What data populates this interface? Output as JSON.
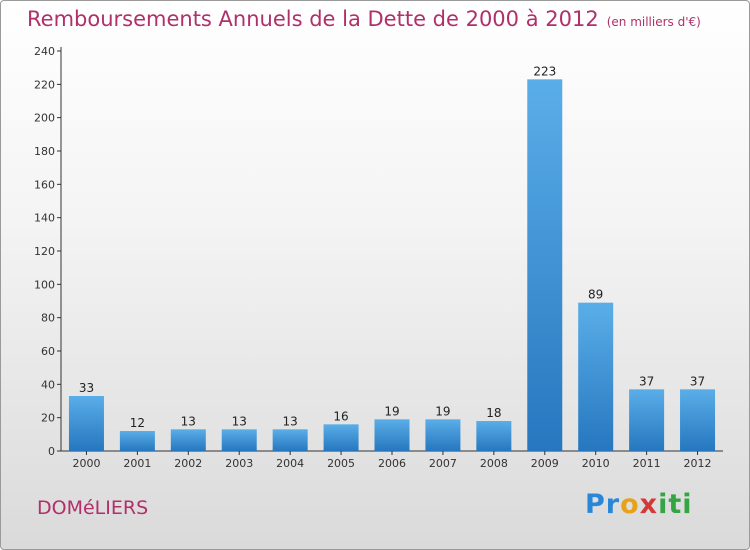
{
  "header": {
    "title": "Remboursements Annuels de la Dette de 2000 à 2012",
    "unit": "(en milliers d'€)"
  },
  "footer": {
    "commune": "DOMéLIERS",
    "logo": [
      "Pr",
      "o",
      "x",
      "iti"
    ]
  },
  "colors": {
    "bar_light": "#5aaee8",
    "bar_dark": "#2677bf",
    "title": "#b0306a",
    "axis": "#333333"
  },
  "chart_data": {
    "type": "bar",
    "title": "Remboursements Annuels de la Dette de 2000 à 2012",
    "categories": [
      "2000",
      "2001",
      "2002",
      "2003",
      "2004",
      "2005",
      "2006",
      "2007",
      "2008",
      "2009",
      "2010",
      "2011",
      "2012"
    ],
    "values": [
      33,
      12,
      13,
      13,
      13,
      16,
      19,
      19,
      18,
      223,
      89,
      37,
      37
    ],
    "ylim": [
      0,
      240
    ],
    "yticks": [
      0,
      20,
      40,
      60,
      80,
      100,
      120,
      140,
      160,
      180,
      200,
      220,
      240
    ],
    "grid": false,
    "data_labels": true
  }
}
